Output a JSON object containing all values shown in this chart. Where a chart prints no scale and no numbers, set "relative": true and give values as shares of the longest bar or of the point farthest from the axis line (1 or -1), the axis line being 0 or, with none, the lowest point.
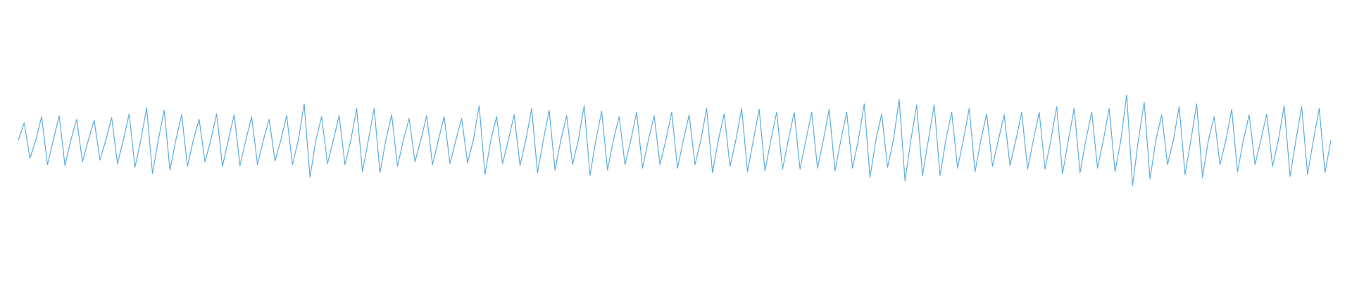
{
  "chart_data": {
    "type": "line",
    "relative": true,
    "marker": "none",
    "line_style": "solid",
    "categories": [
      null,
      null,
      null,
      null,
      null,
      null,
      null,
      null,
      null,
      null,
      null,
      null,
      null,
      null,
      null,
      null,
      null,
      null,
      null,
      null,
      null,
      null,
      null,
      null,
      null,
      null,
      null,
      null,
      null,
      null,
      null,
      null,
      null,
      null,
      null,
      null,
      null,
      null,
      null,
      null,
      null,
      null,
      null,
      null,
      null,
      null,
      null,
      null,
      null,
      null,
      null,
      null,
      null,
      null,
      null,
      null,
      null,
      null,
      null,
      null,
      null,
      null,
      null,
      null,
      null,
      null,
      null,
      null,
      null,
      null,
      null,
      null,
      null,
      null,
      null,
      null,
      null,
      null,
      null,
      null,
      null,
      null,
      null,
      null,
      null,
      null,
      null,
      null,
      null,
      null,
      null,
      null,
      null,
      null,
      null,
      null,
      null,
      null,
      null,
      null,
      null,
      null,
      null,
      null,
      null,
      null,
      null,
      null,
      null,
      null,
      null,
      null,
      null,
      null,
      null,
      null,
      null,
      null,
      null,
      null,
      null,
      null,
      null,
      null,
      null,
      null,
      null,
      null,
      null,
      null,
      null,
      null,
      null,
      null,
      null,
      null,
      null,
      null,
      null,
      null,
      null,
      null,
      null,
      null,
      null,
      null,
      null,
      null,
      null,
      null,
      null,
      null,
      null,
      null,
      null,
      null,
      null,
      null,
      null,
      null,
      null,
      null,
      null,
      null,
      null,
      null,
      null,
      null,
      null,
      null,
      null,
      null,
      null,
      null,
      null,
      null,
      null,
      null,
      null,
      null,
      null,
      null,
      null,
      null,
      null,
      null,
      null,
      null,
      null,
      null,
      null,
      null,
      null,
      null,
      null,
      null,
      null,
      null,
      null,
      null,
      null,
      null,
      null,
      null,
      null,
      null,
      null,
      null,
      null,
      null,
      null,
      null,
      null,
      null,
      null,
      null,
      null,
      null,
      null,
      null,
      null,
      null,
      null,
      null,
      null,
      null
    ],
    "series": [
      {
        "color": "#5dade2",
        "values": [
          0.5,
          0.69,
          0.3,
          0.5,
          0.76,
          0.23,
          0.5,
          0.77,
          0.22,
          0.5,
          0.73,
          0.26,
          0.5,
          0.72,
          0.28,
          0.5,
          0.75,
          0.24,
          0.5,
          0.79,
          0.2,
          0.5,
          0.86,
          0.13,
          0.5,
          0.83,
          0.17,
          0.5,
          0.78,
          0.21,
          0.5,
          0.73,
          0.26,
          0.5,
          0.79,
          0.21,
          0.5,
          0.78,
          0.22,
          0.5,
          0.76,
          0.23,
          0.5,
          0.73,
          0.27,
          0.5,
          0.77,
          0.23,
          0.5,
          0.9,
          0.09,
          0.5,
          0.76,
          0.24,
          0.5,
          0.77,
          0.23,
          0.5,
          0.85,
          0.15,
          0.5,
          0.85,
          0.14,
          0.5,
          0.78,
          0.21,
          0.5,
          0.74,
          0.26,
          0.5,
          0.77,
          0.23,
          0.5,
          0.76,
          0.24,
          0.5,
          0.74,
          0.25,
          0.5,
          0.88,
          0.12,
          0.5,
          0.76,
          0.24,
          0.5,
          0.78,
          0.22,
          0.5,
          0.85,
          0.14,
          0.5,
          0.83,
          0.17,
          0.5,
          0.77,
          0.23,
          0.5,
          0.88,
          0.11,
          0.5,
          0.82,
          0.17,
          0.5,
          0.76,
          0.23,
          0.5,
          0.81,
          0.19,
          0.5,
          0.77,
          0.23,
          0.5,
          0.81,
          0.19,
          0.5,
          0.78,
          0.23,
          0.5,
          0.85,
          0.14,
          0.5,
          0.79,
          0.21,
          0.5,
          0.85,
          0.15,
          0.5,
          0.84,
          0.16,
          0.5,
          0.81,
          0.18,
          0.5,
          0.81,
          0.18,
          0.5,
          0.81,
          0.19,
          0.5,
          0.84,
          0.16,
          0.5,
          0.81,
          0.19,
          0.5,
          0.9,
          0.09,
          0.5,
          0.79,
          0.2,
          0.5,
          0.95,
          0.05,
          0.5,
          0.89,
          0.11,
          0.5,
          0.89,
          0.11,
          0.5,
          0.81,
          0.19,
          0.5,
          0.85,
          0.15,
          0.5,
          0.79,
          0.21,
          0.5,
          0.78,
          0.22,
          0.5,
          0.81,
          0.18,
          0.5,
          0.81,
          0.18,
          0.5,
          0.87,
          0.13,
          0.5,
          0.85,
          0.14,
          0.5,
          0.81,
          0.19,
          0.5,
          0.85,
          0.15,
          0.5,
          1,
          0,
          0.5,
          0.92,
          0.07,
          0.5,
          0.78,
          0.23,
          0.5,
          0.87,
          0.12,
          0.5,
          0.9,
          0.09,
          0.5,
          0.76,
          0.23,
          0.5,
          0.84,
          0.15,
          0.5,
          0.78,
          0.23,
          0.5,
          0.79,
          0.21,
          0.5,
          0.88,
          0.1,
          0.5,
          0.87,
          0.12,
          0.5,
          0.85,
          0.14,
          0.5
        ]
      }
    ]
  }
}
